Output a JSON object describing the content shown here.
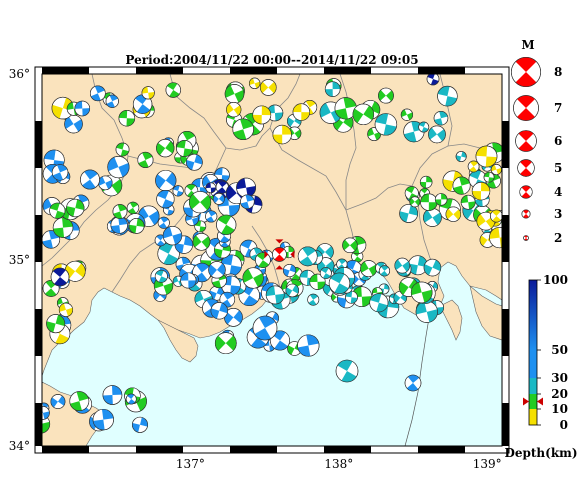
{
  "title": "Period:2004/11/22 00:00--2014/11/22 09:05",
  "axes": {
    "lat_ticks": [
      {
        "value": 36,
        "label": "36°"
      },
      {
        "value": 35,
        "label": "35°"
      },
      {
        "value": 34,
        "label": "34°"
      }
    ],
    "lon_ticks": [
      {
        "value": 137,
        "label": "137°"
      },
      {
        "value": 138,
        "label": "138°"
      },
      {
        "value": 139,
        "label": "139°"
      }
    ],
    "lon_range": [
      136.0,
      139.1
    ],
    "lat_range": [
      34.0,
      36.0
    ]
  },
  "magnitude_legend": {
    "heading": "M",
    "items": [
      {
        "label": "8",
        "mag": 8
      },
      {
        "label": "7",
        "mag": 7
      },
      {
        "label": "6",
        "mag": 6
      },
      {
        "label": "5",
        "mag": 5
      },
      {
        "label": "4",
        "mag": 4
      },
      {
        "label": "3",
        "mag": 3
      },
      {
        "label": "2",
        "mag": 2
      }
    ]
  },
  "depth_scale": {
    "unit_label": "Depth(km)",
    "ticks": [
      {
        "value": 100,
        "label": "100"
      },
      {
        "value": 50,
        "label": "50"
      },
      {
        "value": 30,
        "label": "30"
      },
      {
        "value": 20,
        "label": "20"
      },
      {
        "value": 10,
        "label": "10"
      },
      {
        "value": 0,
        "label": "0"
      }
    ],
    "colors": {
      "shallow": "#f5e000",
      "green": "#22cc22",
      "cyan": "#1ab8c4",
      "blue": "#1e90f0",
      "deep": "#0a1a99"
    },
    "marker_depth": 15
  },
  "highlight_event": {
    "lon": 137.6,
    "lat": 35.03,
    "mag": 4.5,
    "color": "#ff0000"
  },
  "colors": {
    "land": "#fae3bd",
    "sea": "#e0ffff",
    "frame": "#000000",
    "border": "#888888",
    "marker": "#cc0000"
  }
}
